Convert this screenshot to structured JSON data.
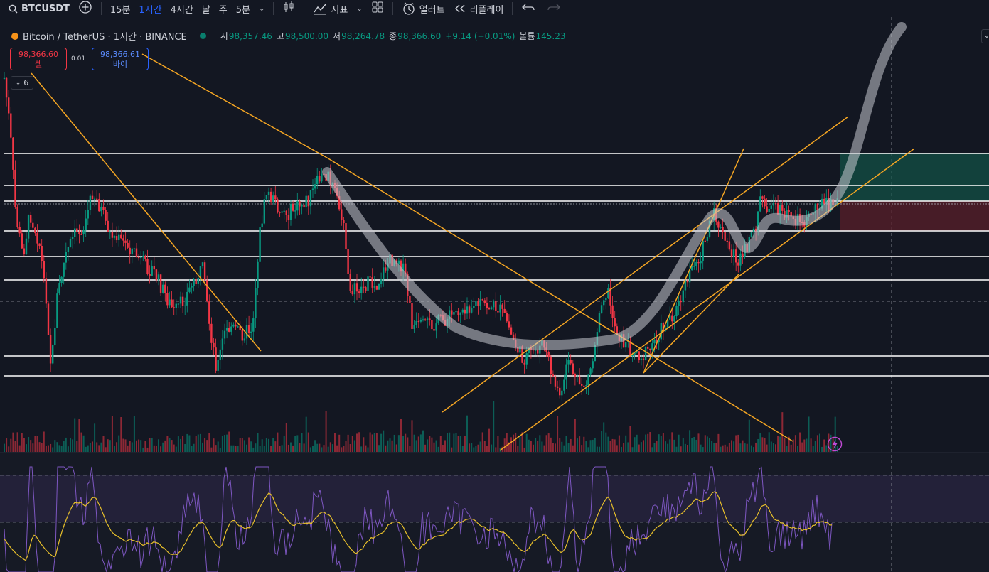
{
  "toolbar": {
    "symbol": "BTCUSDT",
    "intervals": [
      "15분",
      "1시간",
      "4시간",
      "날",
      "주",
      "5분"
    ],
    "active_interval": "1시간",
    "indicators_label": "지표",
    "alert_label": "얼러트",
    "replay_label": "리플레이"
  },
  "legend": {
    "title": "Bitcoin / TetherUS · 1시간 · BINANCE",
    "open_label": "시",
    "open": "98,357.46",
    "high_label": "고",
    "high": "98,500.00",
    "low_label": "저",
    "low": "98,264.78",
    "close_label": "종",
    "close": "98,366.60",
    "change": "+9.14 (+0.01%)",
    "volume_label": "볼륨",
    "volume": "145.23"
  },
  "trade": {
    "sell_price": "98,366.60",
    "sell_label": "셀",
    "spread": "0.01",
    "buy_price": "98,366.61",
    "buy_label": "바이"
  },
  "collapse_count": "6",
  "colors": {
    "background": "#131722",
    "up": "#089981",
    "down": "#f23645",
    "trendline": "#f5a623",
    "accent": "#2962ff",
    "rsi": "#7e57c2",
    "rsi_ma": "#e8c02b"
  },
  "icons": [
    "search-icon",
    "plus-circle-icon",
    "candles-icon",
    "indicators-icon",
    "chevron-down-icon",
    "layout-grid-icon",
    "alarm-clock-icon",
    "replay-icon",
    "undo-icon",
    "redo-icon",
    "lightning-icon"
  ]
}
